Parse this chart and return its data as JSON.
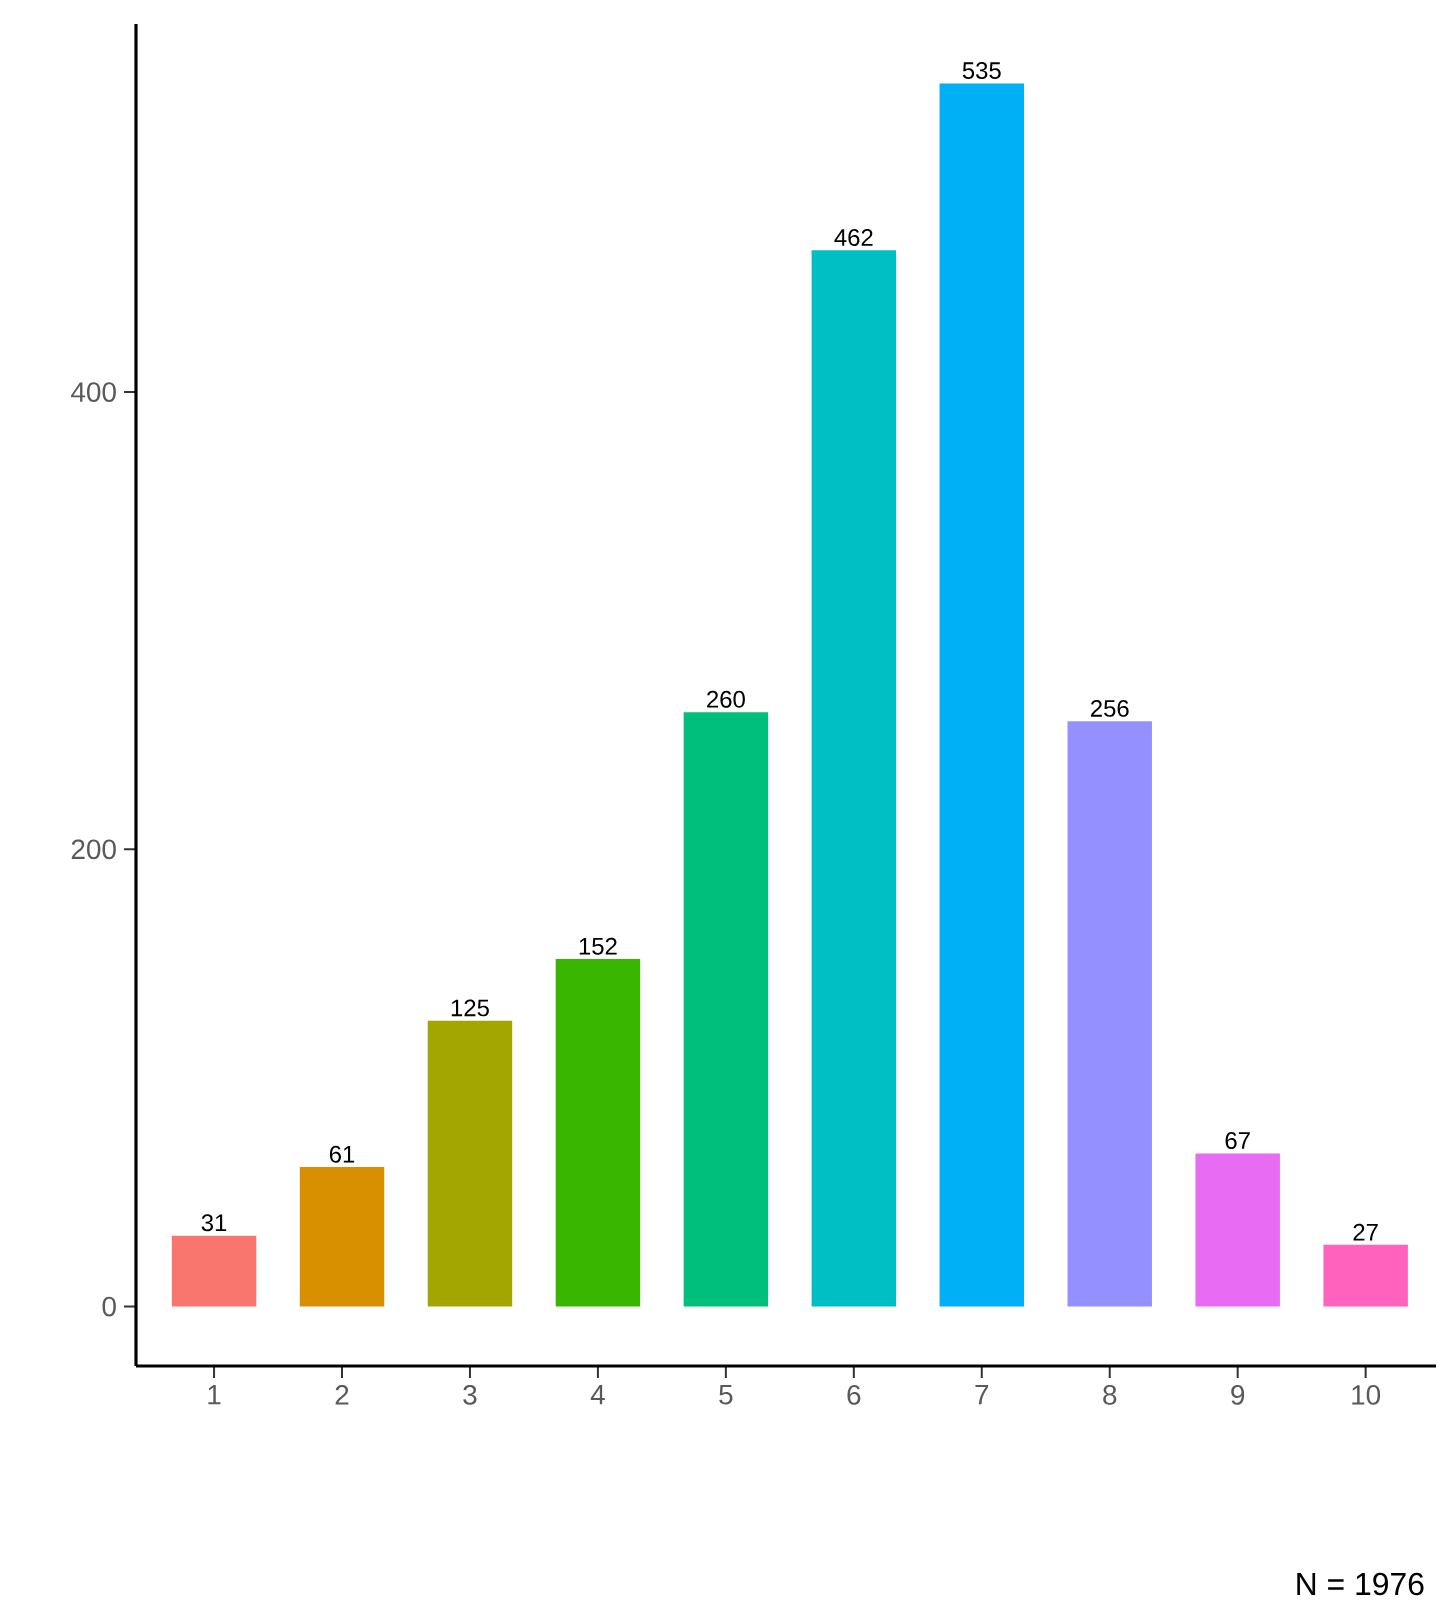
{
  "chart_data": {
    "type": "bar",
    "categories": [
      "1",
      "2",
      "3",
      "4",
      "5",
      "6",
      "7",
      "8",
      "9",
      "10"
    ],
    "values": [
      31,
      61,
      125,
      152,
      260,
      462,
      535,
      256,
      67,
      27
    ],
    "colors": [
      "#f8766d",
      "#d89000",
      "#a3a500",
      "#39b600",
      "#00bf7d",
      "#00bfc4",
      "#00b0f6",
      "#9590ff",
      "#e76bf3",
      "#ff62bc"
    ],
    "ylim": [
      -26,
      561
    ],
    "yticks": [
      0,
      200,
      400
    ],
    "data_labels": true,
    "grid": false,
    "annotations": [
      "N = 1976"
    ]
  }
}
